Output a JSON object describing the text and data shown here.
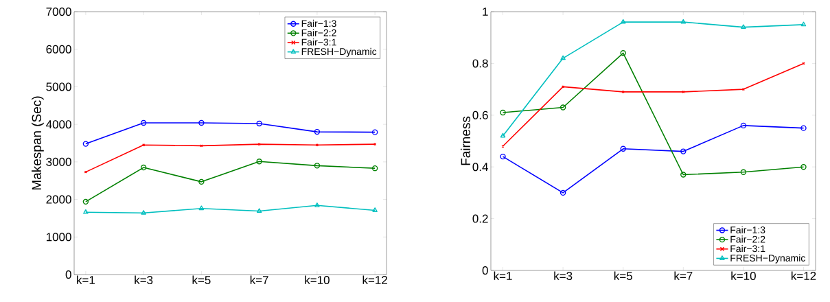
{
  "chart_data": [
    {
      "type": "line",
      "ylabel": "Makespan (Sec)",
      "categories": [
        "k=1",
        "k=3",
        "k=5",
        "k=7",
        "k=10",
        "k=12"
      ],
      "ylim": [
        0,
        7000
      ],
      "yticks": [
        0,
        1000,
        2000,
        3000,
        4000,
        5000,
        6000,
        7000
      ],
      "legend": "top right",
      "series": [
        {
          "name": "Fair−1:3",
          "color": "#0000ff",
          "marker": "circle",
          "values": [
            3480,
            4040,
            4040,
            4020,
            3800,
            3790
          ]
        },
        {
          "name": "Fair−2:2",
          "color": "#008000",
          "marker": "circle",
          "values": [
            1940,
            2850,
            2470,
            3010,
            2900,
            2830
          ]
        },
        {
          "name": "Fair−3:1",
          "color": "#ff0000",
          "marker": "cross",
          "values": [
            2730,
            3450,
            3430,
            3470,
            3450,
            3470
          ]
        },
        {
          "name": "FRESH−Dynamic",
          "color": "#00bfbf",
          "marker": "triangle",
          "values": [
            1660,
            1640,
            1760,
            1690,
            1840,
            1710
          ]
        }
      ]
    },
    {
      "type": "line",
      "ylabel": "Fairness",
      "categories": [
        "k=1",
        "k=3",
        "k=5",
        "k=7",
        "k=10",
        "k=12"
      ],
      "ylim": [
        0,
        1
      ],
      "yticks": [
        0,
        0.2,
        0.4,
        0.6,
        0.8,
        1
      ],
      "legend": "bottom right",
      "series": [
        {
          "name": "Fair−1:3",
          "color": "#0000ff",
          "marker": "circle",
          "values": [
            0.44,
            0.3,
            0.47,
            0.46,
            0.56,
            0.55
          ]
        },
        {
          "name": "Fair−2:2",
          "color": "#008000",
          "marker": "circle",
          "values": [
            0.61,
            0.63,
            0.84,
            0.37,
            0.38,
            0.4
          ]
        },
        {
          "name": "Fair−3:1",
          "color": "#ff0000",
          "marker": "cross",
          "values": [
            0.48,
            0.71,
            0.69,
            0.69,
            0.7,
            0.8
          ]
        },
        {
          "name": "FRESH−Dynamic",
          "color": "#00bfbf",
          "marker": "triangle",
          "values": [
            0.52,
            0.82,
            0.96,
            0.96,
            0.94,
            0.95
          ]
        }
      ]
    }
  ]
}
